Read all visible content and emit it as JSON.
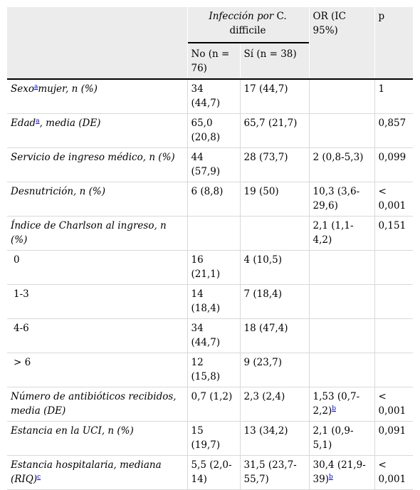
{
  "header": {
    "group_italic": "Infección por",
    "group_organism": "C. difficile",
    "or_label": "OR (IC 95%)",
    "p_label": "p",
    "no_label": "No (n = 76)",
    "si_label": "Sí (n = 38)"
  },
  "rows": [
    {
      "label": "Sexo",
      "fn": "a",
      "label2": "mujer, n (%)",
      "no": "34 (44,7)",
      "si": "17 (44,7)",
      "or": "",
      "p": "1"
    },
    {
      "label": "Edad",
      "fn": "a",
      "label2": ", media (DE)",
      "no": "65,0 (20,8)",
      "si": "65,7 (21,7)",
      "or": "",
      "p": "0,857"
    },
    {
      "label": "Servicio de ingreso médico, n (%)",
      "no": "44 (57,9)",
      "si": "28 (73,7)",
      "or": "2 (0,8-5,3)",
      "p": "0,099"
    },
    {
      "label": "Desnutrición, n (%)",
      "no": "6 (8,8)",
      "si": "19 (50)",
      "or": "10,3 (3,6-29,6)",
      "p": "< 0,001"
    },
    {
      "label": "Índice de Charlson al ingreso, n (%)",
      "no": "",
      "si": "",
      "or": "2,1 (1,1-4,2)",
      "p": "0,151"
    },
    {
      "label": "0",
      "sub": true,
      "no": "16 (21,1)",
      "si": "4 (10,5)",
      "or": "",
      "p": ""
    },
    {
      "label": "1-3",
      "sub": true,
      "no": "14 (18,4)",
      "si": "7 (18,4)",
      "or": "",
      "p": ""
    },
    {
      "label": "4-6",
      "sub": true,
      "no": "34 (44,7)",
      "si": "18 (47,4)",
      "or": "",
      "p": ""
    },
    {
      "label": "> 6",
      "sub": true,
      "no": "12 (15,8)",
      "si": "9 (23,7)",
      "or": "",
      "p": ""
    },
    {
      "label": "Número de antibióticos recibidos, media (DE)",
      "no": "0,7 (1,2)",
      "si": "2,3 (2,4)",
      "or": "1,53 (0,7-2,2)",
      "or_fn": "b",
      "p": "< 0,001"
    },
    {
      "label": "Estancia en la UCI, n (%)",
      "no": "15 (19,7)",
      "si": "13 (34,2)",
      "or": "2,1 (0,9-5,1)",
      "p": "0,091"
    },
    {
      "label": "Estancia hospitalaria, mediana (RIQ)",
      "fn_after": "c",
      "no": "5,5 (2,0-14)",
      "si": "31,5 (23,7-55,7)",
      "or": "30,4 (21,9-39)",
      "or_fn": "b",
      "p": "< 0,001"
    }
  ]
}
